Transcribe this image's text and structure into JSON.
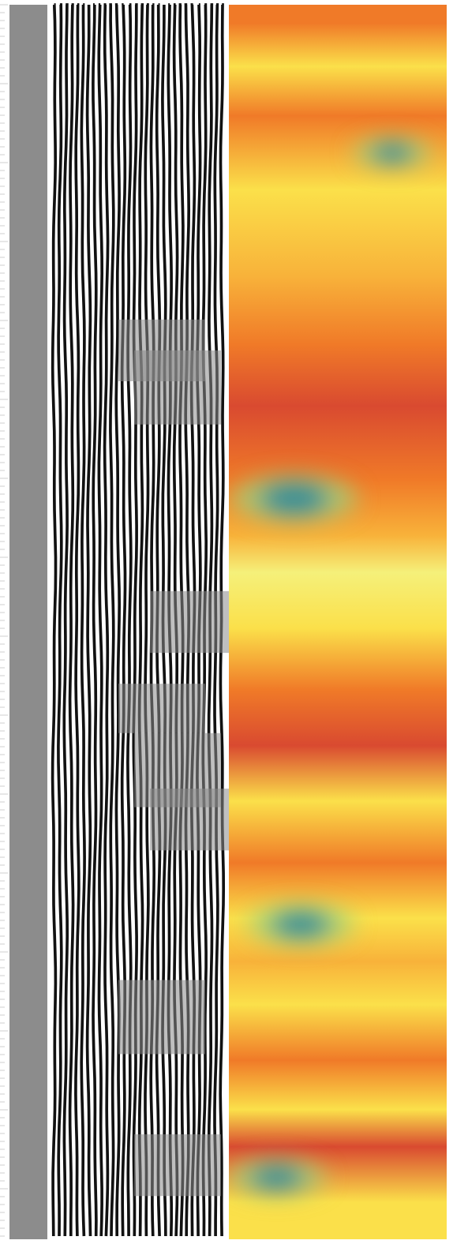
{
  "figure": {
    "tracks": [
      {
        "name": "depth-scale",
        "kind": "ruler",
        "color": "#cfcfcf"
      },
      {
        "name": "gamma-gray-track",
        "kind": "solid",
        "color": "#8c8c8c"
      },
      {
        "name": "waveform-track",
        "kind": "wiggle",
        "ink": "#111111",
        "noise": "#8a8a8a"
      },
      {
        "name": "heatmap-track",
        "kind": "image",
        "palette": [
          "#d94a30",
          "#f07a28",
          "#f8b23a",
          "#fbe04a",
          "#f5f07a",
          "#2a8a9a",
          "#1f6f8e"
        ]
      }
    ]
  },
  "chart_data": {
    "type": "heatmap",
    "title": "",
    "xlabel": "",
    "ylabel": "",
    "grid": false,
    "bands": [
      {
        "from": 0.0,
        "to": 0.03,
        "level": 0.35
      },
      {
        "from": 0.03,
        "to": 0.07,
        "level": 0.85
      },
      {
        "from": 0.07,
        "to": 0.11,
        "level": 0.15
      },
      {
        "from": 0.11,
        "to": 0.19,
        "level": 0.8
      },
      {
        "from": 0.19,
        "to": 0.25,
        "level": 0.6
      },
      {
        "from": 0.25,
        "to": 0.3,
        "level": 0.3
      },
      {
        "from": 0.3,
        "to": 0.35,
        "level": 0.1
      },
      {
        "from": 0.35,
        "to": 0.42,
        "level": 0.25
      },
      {
        "from": 0.42,
        "to": 0.44,
        "level": 0.45
      },
      {
        "from": 0.44,
        "to": 0.48,
        "level": 0.95
      },
      {
        "from": 0.48,
        "to": 0.53,
        "level": 0.85
      },
      {
        "from": 0.53,
        "to": 0.58,
        "level": 0.35
      },
      {
        "from": 0.58,
        "to": 0.62,
        "level": 0.05
      },
      {
        "from": 0.62,
        "to": 0.67,
        "level": 0.7
      },
      {
        "from": 0.67,
        "to": 0.72,
        "level": 0.25
      },
      {
        "from": 0.72,
        "to": 0.76,
        "level": 0.65
      },
      {
        "from": 0.76,
        "to": 0.79,
        "level": 0.4
      },
      {
        "from": 0.79,
        "to": 0.83,
        "level": 0.85
      },
      {
        "from": 0.83,
        "to": 0.88,
        "level": 0.15
      },
      {
        "from": 0.88,
        "to": 0.91,
        "level": 0.7
      },
      {
        "from": 0.91,
        "to": 0.94,
        "level": 0.1
      },
      {
        "from": 0.94,
        "to": 1.0,
        "level": 0.8
      }
    ],
    "anomalies": [
      {
        "depth": 0.12,
        "across": 0.75,
        "strength": 0.5
      },
      {
        "depth": 0.4,
        "across": 0.3,
        "strength": 1.0
      },
      {
        "depth": 0.745,
        "across": 0.33,
        "strength": 0.8
      },
      {
        "depth": 0.95,
        "across": 0.22,
        "strength": 0.7
      }
    ]
  }
}
